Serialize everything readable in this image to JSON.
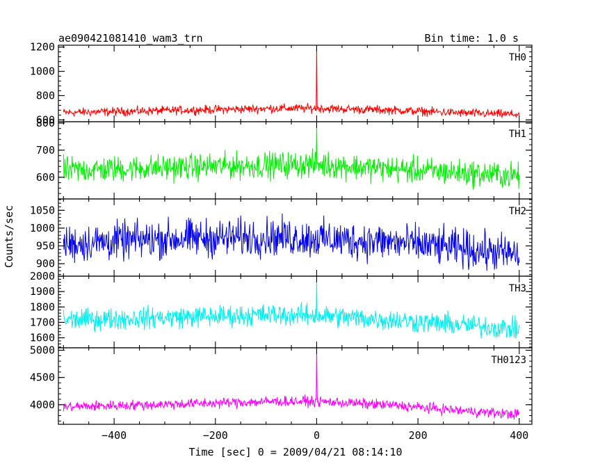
{
  "chart_data": {
    "type": "line",
    "title": "ae090421081410_wam3_trn",
    "bin_time_label": "Bin time: 1.0 s",
    "xlabel": "Time [sec] 0 = 2009/04/21 08:14:10",
    "ylabel": "Counts/sec",
    "xlim": [
      -510,
      425
    ],
    "x_ticks": [
      -400,
      -200,
      0,
      200,
      400
    ],
    "x_tick_labels": [
      "−400",
      "−200",
      "0",
      "200",
      "400"
    ],
    "series": [
      {
        "name": "TH0",
        "color": "#ff0000",
        "ylim": [
          585,
          1215
        ],
        "y_ticks": [
          600,
          800,
          1000,
          1200
        ],
        "y_tick_labels": [
          "600",
          "800",
          "1000",
          "1200"
        ],
        "baseline": [
          [
            -500,
            660
          ],
          [
            -200,
            685
          ],
          [
            -80,
            695
          ],
          [
            0,
            695
          ],
          [
            150,
            680
          ],
          [
            300,
            655
          ],
          [
            400,
            645
          ]
        ],
        "noise": 28,
        "spikes": [
          [
            0,
            1215
          ]
        ]
      },
      {
        "name": "TH1",
        "color": "#00ee00",
        "ylim": [
          520,
          805
        ],
        "y_ticks": [
          600,
          700,
          800
        ],
        "y_tick_labels": [
          "600",
          "700",
          "800"
        ],
        "baseline": [
          [
            -500,
            625
          ],
          [
            -200,
            640
          ],
          [
            -80,
            645
          ],
          [
            0,
            648
          ],
          [
            150,
            630
          ],
          [
            300,
            615
          ],
          [
            400,
            605
          ]
        ],
        "noise": 38,
        "spikes": [
          [
            0,
            800
          ]
        ]
      },
      {
        "name": "TH2",
        "color": "#0000ee",
        "ylim": [
          865,
          1082
        ],
        "y_ticks": [
          900,
          950,
          1000,
          1050
        ],
        "y_tick_labels": [
          "900",
          "950",
          "1000",
          "1050"
        ],
        "baseline": [
          [
            -500,
            955
          ],
          [
            -300,
            970
          ],
          [
            -80,
            975
          ],
          [
            0,
            970
          ],
          [
            150,
            960
          ],
          [
            300,
            940
          ],
          [
            400,
            925
          ]
        ],
        "noise": 42,
        "spikes": []
      },
      {
        "name": "TH3",
        "color": "#00eeee",
        "ylim": [
          1535,
          2000
        ],
        "y_ticks": [
          1600,
          1700,
          1800,
          1900,
          2000
        ],
        "y_tick_labels": [
          "1600",
          "1700",
          "1800",
          "1900",
          "2000"
        ],
        "baseline": [
          [
            -500,
            1715
          ],
          [
            -200,
            1740
          ],
          [
            -80,
            1750
          ],
          [
            0,
            1745
          ],
          [
            150,
            1715
          ],
          [
            300,
            1680
          ],
          [
            400,
            1655
          ]
        ],
        "noise": 55,
        "spikes": [
          [
            0,
            1985
          ]
        ]
      },
      {
        "name": "TH0123",
        "color": "#ff00ff",
        "ylim": [
          3640,
          5045
        ],
        "y_ticks": [
          4000,
          4500,
          5000
        ],
        "y_tick_labels": [
          "4000",
          "4500",
          "5000"
        ],
        "baseline": [
          [
            -500,
            3960
          ],
          [
            -200,
            4030
          ],
          [
            -80,
            4060
          ],
          [
            0,
            4060
          ],
          [
            150,
            3990
          ],
          [
            300,
            3880
          ],
          [
            400,
            3820
          ]
        ],
        "noise": 75,
        "spikes": [
          [
            0,
            5045
          ]
        ]
      }
    ]
  }
}
